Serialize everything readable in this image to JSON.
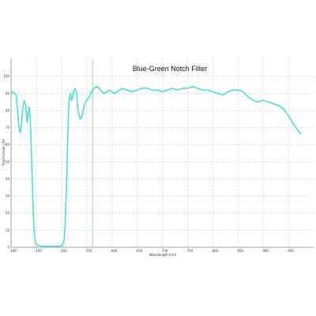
{
  "chart_data": {
    "type": "line",
    "title": "Blue-Green Notch Filter",
    "xlabel": "Wavelength (nm)",
    "ylabel": "Transmission (%)",
    "xlim": [
      400,
      1000
    ],
    "ylim": [
      0,
      110
    ],
    "x_ticks": [
      400,
      450,
      500,
      550,
      600,
      650,
      700,
      750,
      800,
      850,
      900,
      950
    ],
    "y_ticks": [
      0,
      10,
      20,
      30,
      40,
      50,
      60,
      70,
      80,
      90,
      100
    ],
    "grid": true,
    "reference_line_x": 562,
    "colors": {
      "series": "#40e0d0",
      "reference": "#90ee90",
      "grid": "#c8c8c8",
      "axis": "#808080"
    },
    "series": [
      {
        "values": [
          [
            400,
            89
          ],
          [
            403,
            91
          ],
          [
            406,
            90.5
          ],
          [
            410,
            89
          ],
          [
            413,
            80
          ],
          [
            416,
            70
          ],
          [
            418,
            67
          ],
          [
            420,
            70
          ],
          [
            423,
            80
          ],
          [
            426,
            86
          ],
          [
            429,
            83
          ],
          [
            432,
            73
          ],
          [
            434,
            78
          ],
          [
            436,
            82
          ],
          [
            438,
            76
          ],
          [
            440,
            60
          ],
          [
            442,
            40
          ],
          [
            444,
            20
          ],
          [
            446,
            8
          ],
          [
            448,
            3
          ],
          [
            451,
            1.5
          ],
          [
            460,
            0.5
          ],
          [
            480,
            0.5
          ],
          [
            495,
            0.5
          ],
          [
            502,
            1
          ],
          [
            505,
            4
          ],
          [
            507,
            12
          ],
          [
            510,
            35
          ],
          [
            512,
            60
          ],
          [
            514,
            80
          ],
          [
            516,
            88
          ],
          [
            518,
            90
          ],
          [
            520,
            86
          ],
          [
            522,
            87
          ],
          [
            524,
            91
          ],
          [
            527,
            93
          ],
          [
            530,
            90
          ],
          [
            533,
            80
          ],
          [
            537,
            75
          ],
          [
            540,
            76
          ],
          [
            543,
            80
          ],
          [
            546,
            84
          ],
          [
            550,
            86
          ],
          [
            555,
            88
          ],
          [
            560,
            91
          ],
          [
            565,
            93
          ],
          [
            570,
            94
          ],
          [
            575,
            93
          ],
          [
            580,
            91
          ],
          [
            585,
            90
          ],
          [
            590,
            91
          ],
          [
            595,
            92
          ],
          [
            600,
            91
          ],
          [
            605,
            90
          ],
          [
            610,
            91
          ],
          [
            615,
            92
          ],
          [
            620,
            93
          ],
          [
            630,
            92
          ],
          [
            640,
            91
          ],
          [
            650,
            92
          ],
          [
            660,
            93
          ],
          [
            670,
            93
          ],
          [
            680,
            92
          ],
          [
            690,
            92
          ],
          [
            700,
            91
          ],
          [
            710,
            92
          ],
          [
            720,
            93
          ],
          [
            730,
            92
          ],
          [
            740,
            93
          ],
          [
            750,
            93
          ],
          [
            760,
            94
          ],
          [
            770,
            93
          ],
          [
            780,
            92
          ],
          [
            790,
            92
          ],
          [
            800,
            91
          ],
          [
            810,
            90
          ],
          [
            820,
            89
          ],
          [
            830,
            91
          ],
          [
            840,
            92
          ],
          [
            850,
            92
          ],
          [
            860,
            91
          ],
          [
            870,
            88
          ],
          [
            880,
            86
          ],
          [
            890,
            85
          ],
          [
            900,
            86
          ],
          [
            910,
            85
          ],
          [
            920,
            84
          ],
          [
            930,
            83
          ],
          [
            940,
            81
          ],
          [
            950,
            77
          ],
          [
            960,
            72
          ],
          [
            970,
            68
          ],
          [
            975,
            66
          ]
        ]
      }
    ]
  }
}
